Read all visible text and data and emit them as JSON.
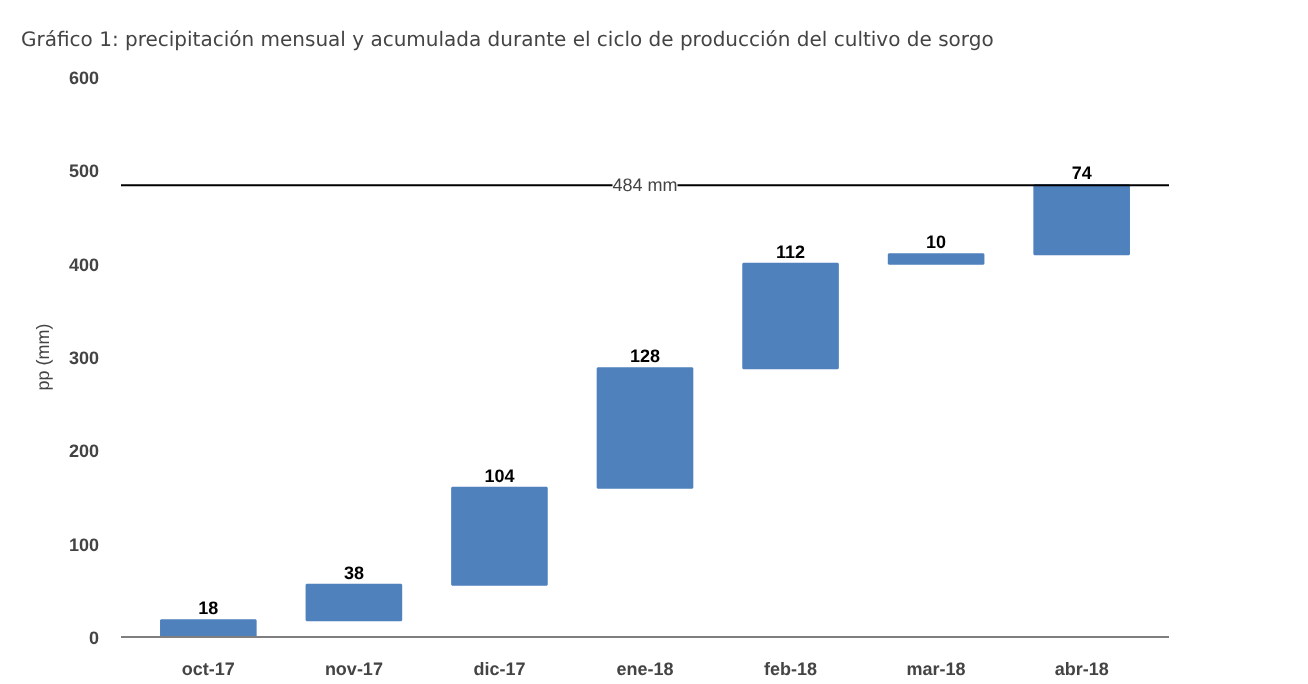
{
  "chart_data": {
    "type": "bar",
    "title": "Gráfico 1: precipitación mensual y acumulada durante el ciclo de producción del cultivo de sorgo",
    "ylabel": "pp (mm)",
    "categories": [
      "oct-17",
      "nov-17",
      "dic-17",
      "ene-18",
      "feb-18",
      "mar-18",
      "abr-18"
    ],
    "values": [
      18,
      38,
      104,
      128,
      112,
      10,
      74
    ],
    "base": [
      0,
      18,
      56,
      160,
      288,
      400,
      410
    ],
    "color": "#4f81bd",
    "data_labels": true,
    "ylim": [
      0,
      600
    ],
    "yticks": [
      0,
      100,
      200,
      300,
      400,
      500,
      600
    ],
    "grid": false,
    "ref_lines": [
      {
        "axis": "y",
        "value": 484,
        "label": "484 mm",
        "color": "#000000"
      }
    ]
  }
}
